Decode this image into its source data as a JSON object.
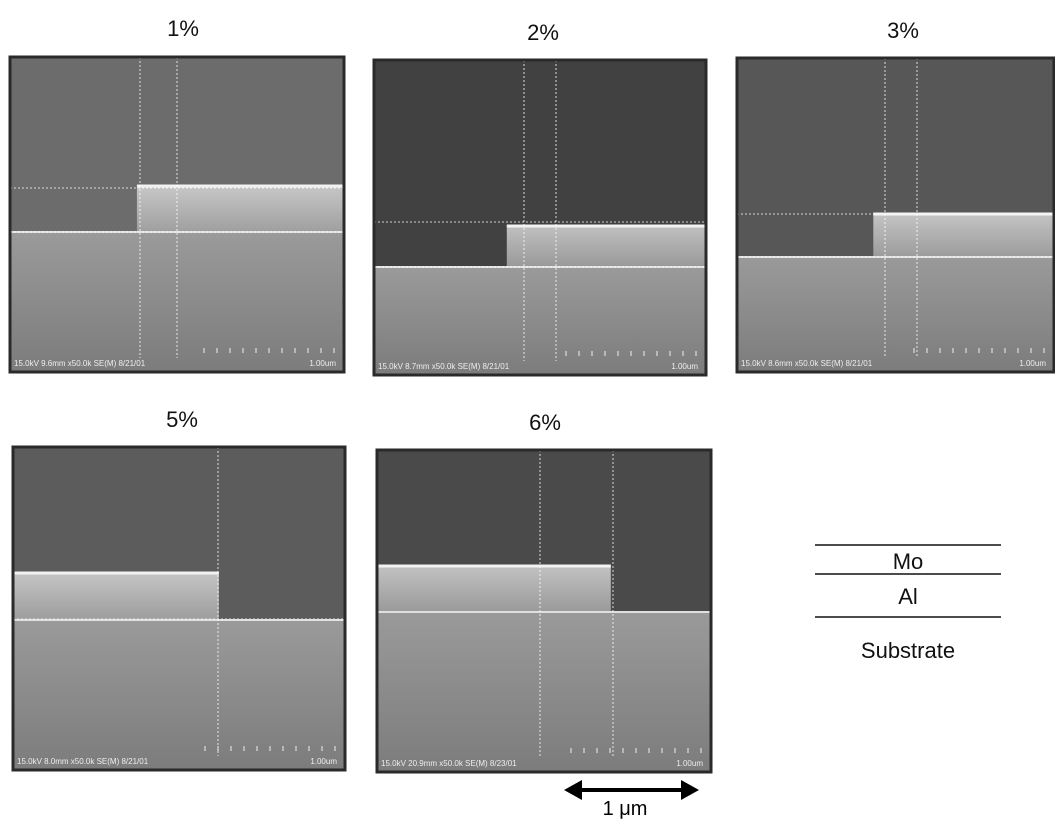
{
  "panels": [
    {
      "label": "1%",
      "info": "15.0kV 9.6mm x50.0k SE(M) 8/21/01",
      "scale": "1.00um"
    },
    {
      "label": "2%",
      "info": "15.0kV 8.7mm x50.0k SE(M) 8/21/01",
      "scale": "1.00um"
    },
    {
      "label": "3%",
      "info": "15.0kV 8.6mm x50.0k SE(M) 8/21/01",
      "scale": "1.00um"
    },
    {
      "label": "5%",
      "info": "15.0kV 8.0mm x50.0k SE(M) 8/21/01",
      "scale": "1.00um"
    },
    {
      "label": "6%",
      "info": "15.0kV 20.9mm x50.0k SE(M) 8/23/01",
      "scale": "1.00um"
    }
  ],
  "legend": {
    "layers": [
      "Mo",
      "Al",
      "Substrate"
    ]
  },
  "scale_bar": "1 μm"
}
